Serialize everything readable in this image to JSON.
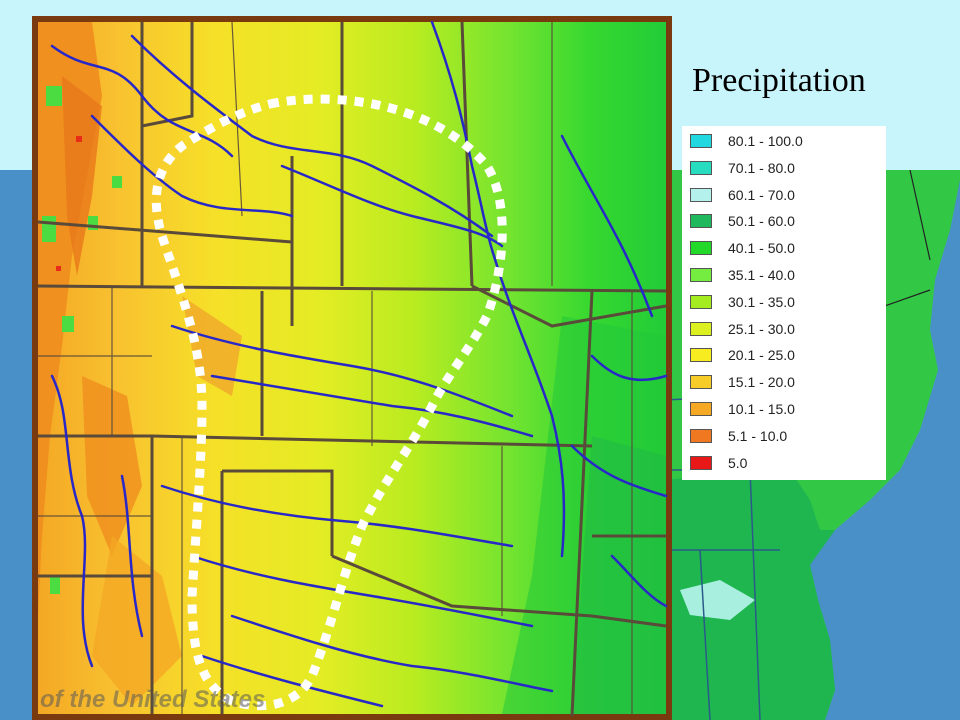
{
  "title": "Precipitation",
  "watermark": "of the United States",
  "legend": [
    {
      "label": "80.1 - 100.0",
      "color": "#22d8e0"
    },
    {
      "label": "70.1 - 80.0",
      "color": "#28dcc0"
    },
    {
      "label": "60.1 - 70.0",
      "color": "#b4f0ec"
    },
    {
      "label": "50.1 - 60.0",
      "color": "#20b85c"
    },
    {
      "label": "40.1 - 50.0",
      "color": "#22d828"
    },
    {
      "label": "35.1 - 40.0",
      "color": "#74ec40"
    },
    {
      "label": "30.1 - 35.0",
      "color": "#a4ec20"
    },
    {
      "label": "25.1 - 30.0",
      "color": "#dcf020"
    },
    {
      "label": "20.1 - 25.0",
      "color": "#f6ec20"
    },
    {
      "label": "15.1 - 20.0",
      "color": "#f8cc28"
    },
    {
      "label": "10.1 - 15.0",
      "color": "#f4a824"
    },
    {
      "label": "5.1 - 10.0",
      "color": "#f07820"
    },
    {
      "label": "5.0",
      "color": "#e81818"
    }
  ],
  "colors": {
    "frame": "#7a3a10",
    "border_lines": "#5a4a3a",
    "rivers": "#2828c8",
    "highlight": "#ffffff",
    "background_sky": "#c8f4fb",
    "background_band": "#4a90c8"
  }
}
